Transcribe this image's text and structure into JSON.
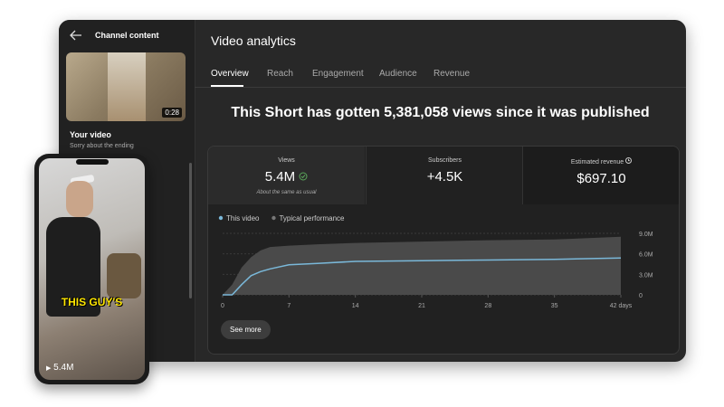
{
  "sidebar": {
    "back_title": "Channel content",
    "thumbnail_duration": "0:28",
    "video_label": "Your video",
    "video_title": "Sorry about the ending"
  },
  "header": {
    "title": "Video analytics",
    "tabs": [
      "Overview",
      "Reach",
      "Engagement",
      "Audience",
      "Revenue"
    ]
  },
  "headline": "This Short has gotten 5,381,058 views since it was published",
  "metrics": [
    {
      "label": "Views",
      "value": "5.4M",
      "note": "About the same as usual"
    },
    {
      "label": "Subscribers",
      "value": "+4.5K"
    },
    {
      "label": "Estimated revenue",
      "value": "$697.10"
    }
  ],
  "chart_data": {
    "type": "line",
    "x": [
      0,
      1,
      2,
      3,
      4,
      5,
      7,
      10,
      14,
      21,
      28,
      35,
      42
    ],
    "series": [
      {
        "name": "This video",
        "color": "#7ab8d9",
        "values": [
          0,
          0,
          1500000,
          2800000,
          3400000,
          3800000,
          4400000,
          4600000,
          4900000,
          5000000,
          5100000,
          5200000,
          5400000
        ]
      },
      {
        "name": "Typical performance",
        "color": "#4a4a4a",
        "fill": true,
        "values": [
          0,
          1500000,
          4000000,
          5500000,
          6500000,
          7000000,
          7200000,
          7400000,
          7600000,
          7800000,
          8000000,
          8100000,
          8500000
        ]
      }
    ],
    "xlim": [
      0,
      42
    ],
    "xticks": [
      0,
      7,
      14,
      21,
      28,
      35,
      {
        "value": 42,
        "label": "42 days"
      }
    ],
    "ylim": [
      0,
      9000000
    ],
    "yticks": [
      0,
      {
        "value": 3000000,
        "label": "3.0M"
      },
      {
        "value": 6000000,
        "label": "6.0M"
      },
      {
        "value": 9000000,
        "label": "9.0M"
      }
    ],
    "grid": true
  },
  "button": "See more",
  "phone": {
    "caption": "THIS GUY'S",
    "views": "5.4M"
  }
}
